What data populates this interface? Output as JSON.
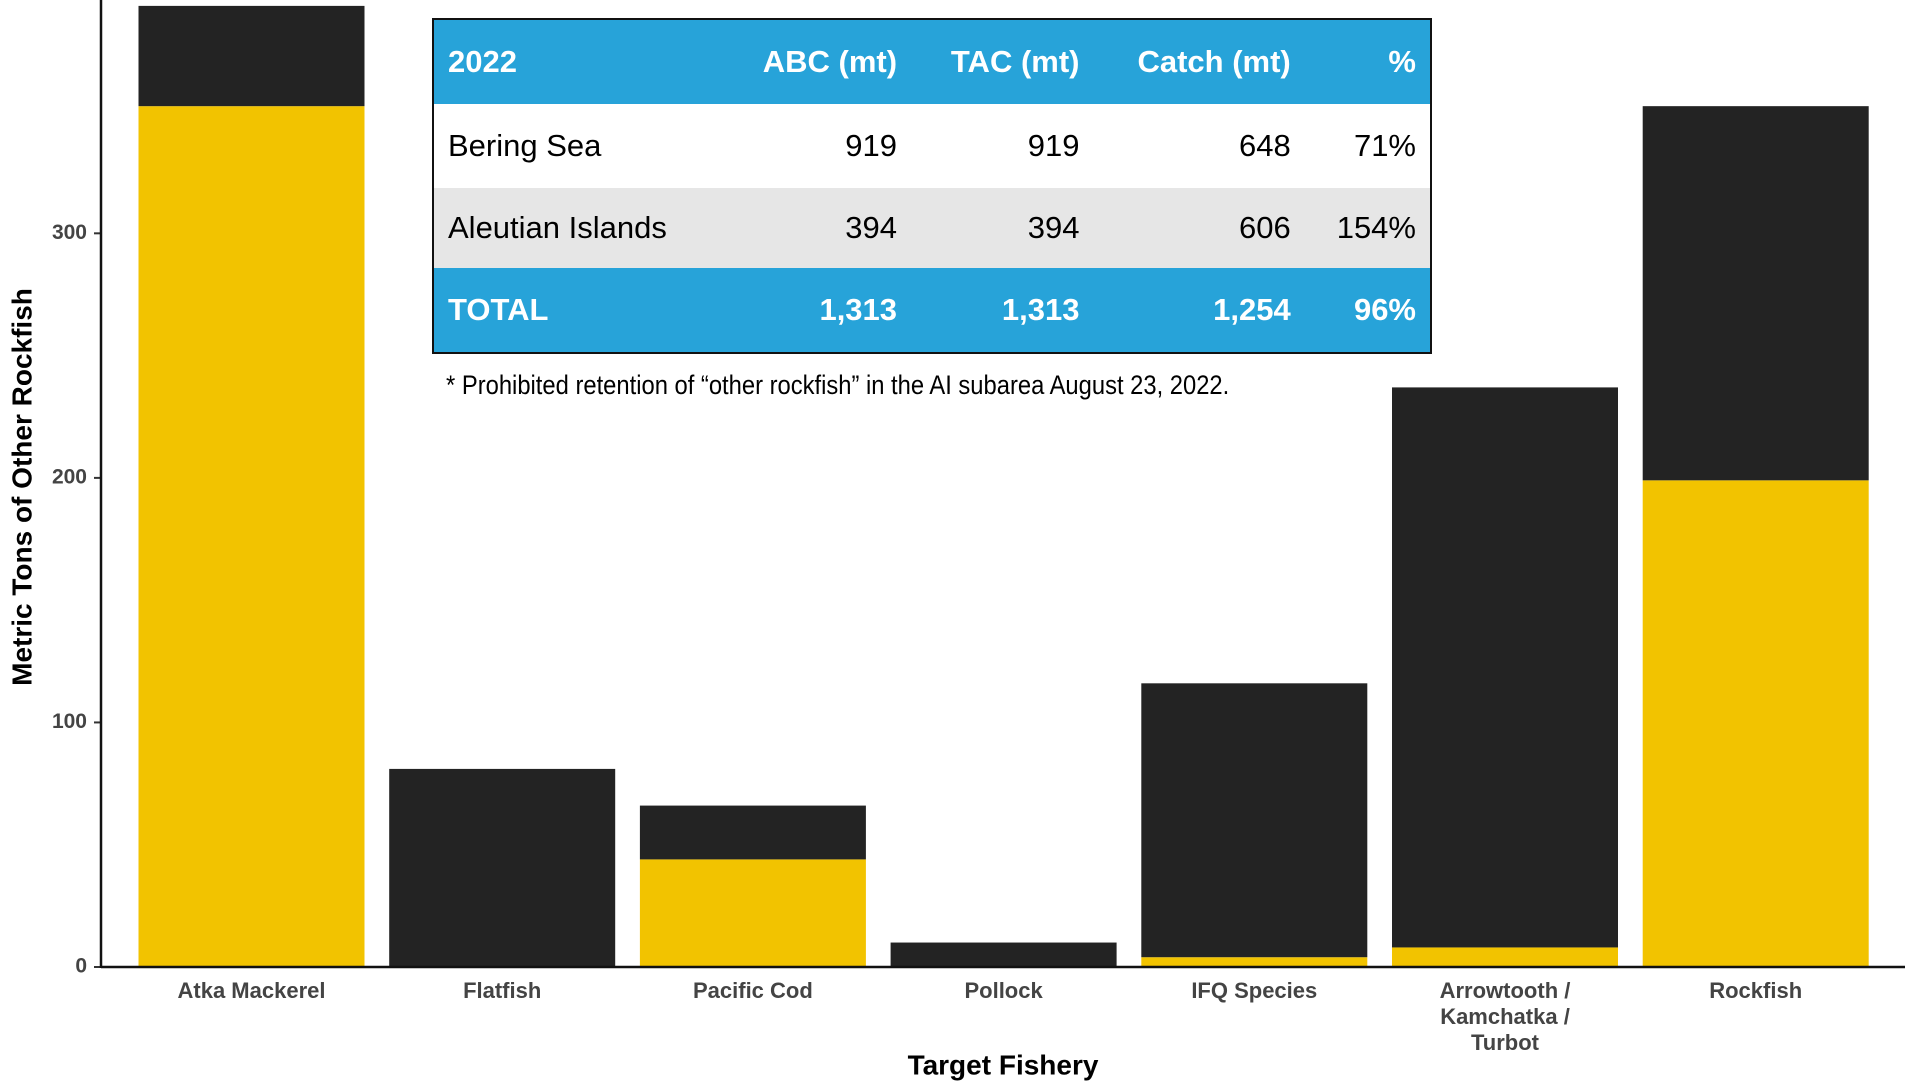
{
  "chart_data": {
    "type": "stacked_bar",
    "xlabel": "Target Fishery",
    "ylabel": "Metric Tons of Other Rockfish",
    "categories": [
      "Atka Mackerel",
      "Flatfish",
      "Pacific Cod",
      "Pollock",
      "IFQ Species",
      "Arrowtooth /\nKamchatka /\nTurbot",
      "Rockfish"
    ],
    "series": [
      {
        "color": "#f2c300",
        "values": [
          352,
          0,
          44,
          0,
          4,
          8,
          199
        ]
      },
      {
        "color": "#232323",
        "values": [
          41,
          81,
          22,
          10,
          112,
          229,
          153
        ]
      }
    ],
    "ylim": [
      0,
      395
    ],
    "yticks": [
      0,
      100,
      200,
      300
    ],
    "grid": false,
    "table": {
      "header": [
        "2022",
        "ABC (mt)",
        "TAC (mt)",
        "Catch (mt)",
        "%"
      ],
      "rows": [
        [
          "Bering Sea",
          "919",
          "919",
          "648",
          "71%"
        ],
        [
          "Aleutian Islands",
          "394",
          "394",
          "606",
          "154%"
        ],
        [
          "TOTAL",
          "1,313",
          "1,313",
          "1,254",
          "96%"
        ]
      ],
      "footnote": "* Prohibited retention of “other rockfish” in the AI subarea August 23, 2022."
    }
  }
}
